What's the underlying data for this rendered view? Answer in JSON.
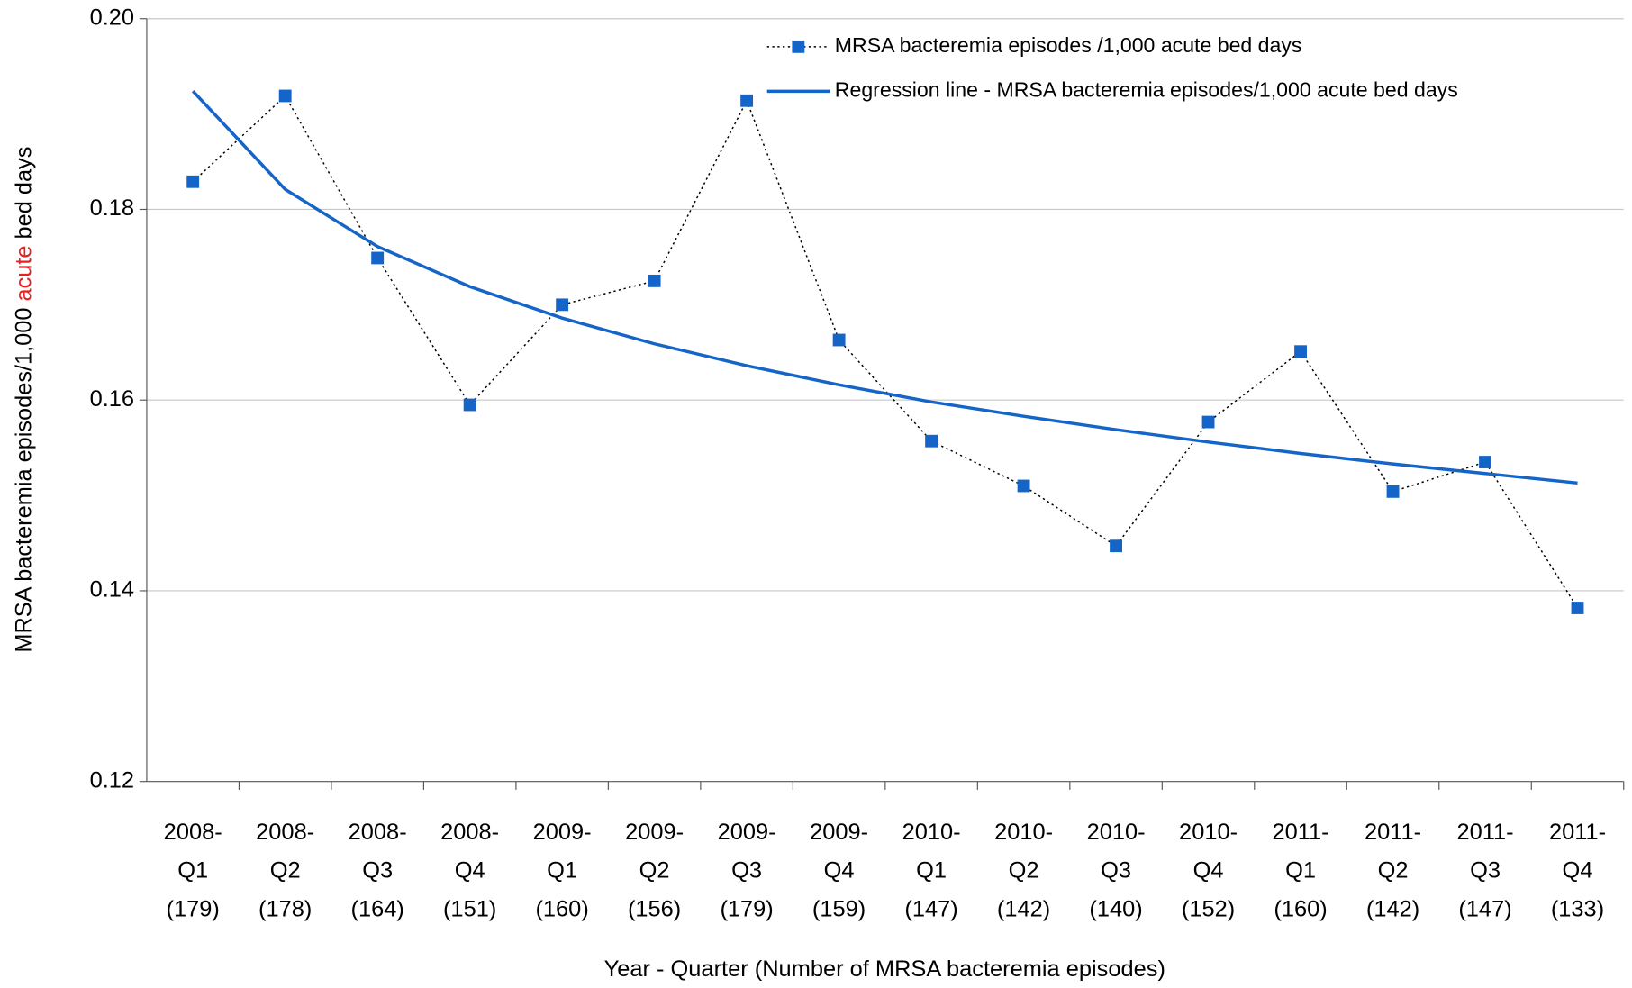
{
  "chart_data": {
    "type": "line",
    "y_label": [
      "MRSA bacteremia episodes/1,000 ",
      "acute",
      " bed days"
    ],
    "y_label_highlight_color": "#e8201f",
    "x_label": "Year - Quarter (Number of MRSA bacteremia episodes)",
    "categories": [
      [
        "2008-",
        "Q1",
        "(179)"
      ],
      [
        "2008-",
        "Q2",
        "(178)"
      ],
      [
        "2008-",
        "Q3",
        "(164)"
      ],
      [
        "2008-",
        "Q4",
        "(151)"
      ],
      [
        "2009-",
        "Q1",
        "(160)"
      ],
      [
        "2009-",
        "Q2",
        "(156)"
      ],
      [
        "2009-",
        "Q3",
        "(179)"
      ],
      [
        "2009-",
        "Q4",
        "(159)"
      ],
      [
        "2010-",
        "Q1",
        "(147)"
      ],
      [
        "2010-",
        "Q2",
        "(142)"
      ],
      [
        "2010-",
        "Q3",
        "(140)"
      ],
      [
        "2010-",
        "Q4",
        "(152)"
      ],
      [
        "2011-",
        "Q1",
        "(160)"
      ],
      [
        "2011-",
        "Q2",
        "(142)"
      ],
      [
        "2011-",
        "Q3",
        "(147)"
      ],
      [
        "2011-",
        "Q4",
        "(133)"
      ]
    ],
    "series": [
      {
        "name": "MRSA bacteremia episodes /1,000 acute bed days",
        "color": "#1565c8",
        "style": "dotted-markers",
        "values": [
          0.1829,
          0.1919,
          0.1749,
          0.1595,
          0.17,
          0.1725,
          0.1914,
          0.1663,
          0.1557,
          0.151,
          0.1447,
          0.1577,
          0.1651,
          0.1504,
          0.1535,
          0.1382
        ]
      },
      {
        "name": "Regression line - MRSA bacteremia episodes/1,000 acute bed days",
        "color": "#1565c8",
        "style": "solid",
        "values": [
          0.1924,
          0.1821,
          0.1761,
          0.1719,
          0.1686,
          0.1659,
          0.1636,
          0.1616,
          0.1598,
          0.1583,
          0.1569,
          0.1556,
          0.1544,
          0.1533,
          0.1523,
          0.1513
        ]
      }
    ],
    "ylim": [
      0.12,
      0.2
    ],
    "yticks": [
      {
        "value": 0.12,
        "label": "0.12"
      },
      {
        "value": 0.14,
        "label": "0.14"
      },
      {
        "value": 0.16,
        "label": "0.16"
      },
      {
        "value": 0.18,
        "label": "0.18"
      },
      {
        "value": 0.2,
        "label": "0.20"
      }
    ],
    "grid": true,
    "legend": "top-right"
  }
}
